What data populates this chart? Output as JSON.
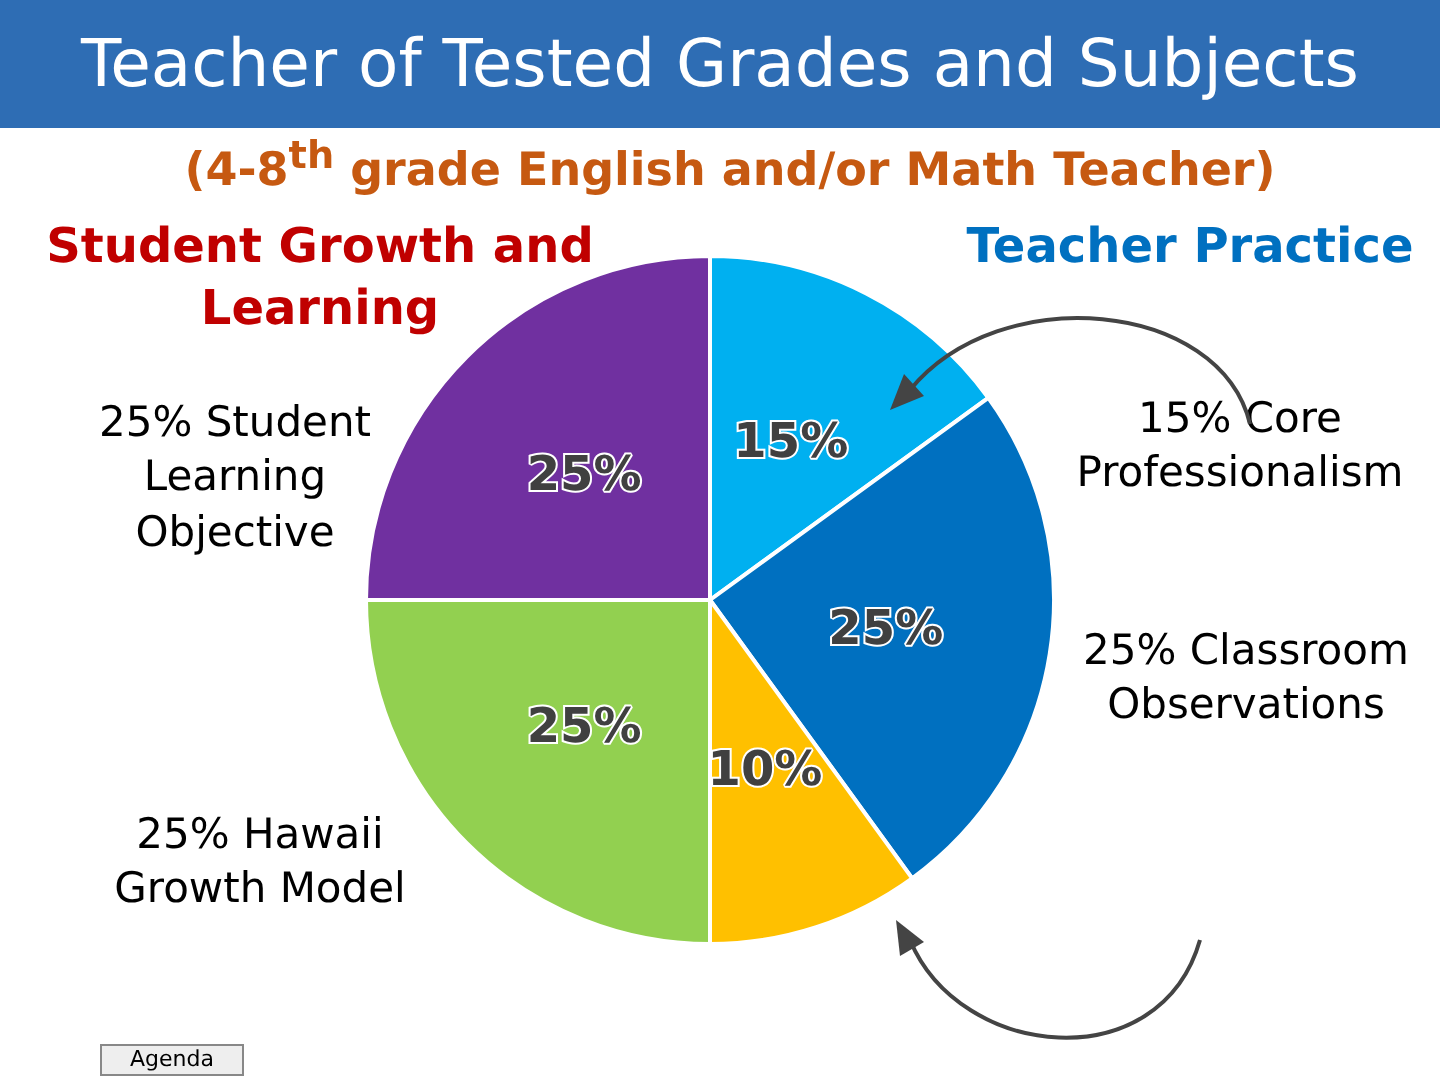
{
  "chart_data": {
    "type": "pie",
    "title": "Teacher of Tested Grades and Subjects",
    "subtitle": "(4-8$^{th}$ grade English and/or Math Teacher)",
    "categories": [
      null,
      null,
      null,
      null,
      null
    ],
    "values": [
      15,
      25,
      10,
      25,
      25
    ],
    "colors": [
      "#00b0f0",
      "#0070c0",
      "#ffc000",
      "#92d050",
      "#7030a0"
    ],
    "value_labels": [
      "15%",
      "25%",
      "10%",
      "25%",
      "25%"
    ],
    "annotations": [
      "Student Growth and Learning",
      "Teacher Practice",
      "25% Student Learning Objective",
      "25% Hawaii Growth Model",
      "15% Core Professionalism",
      "25% Classroom Observations",
      "Agenda"
    ]
  }
}
